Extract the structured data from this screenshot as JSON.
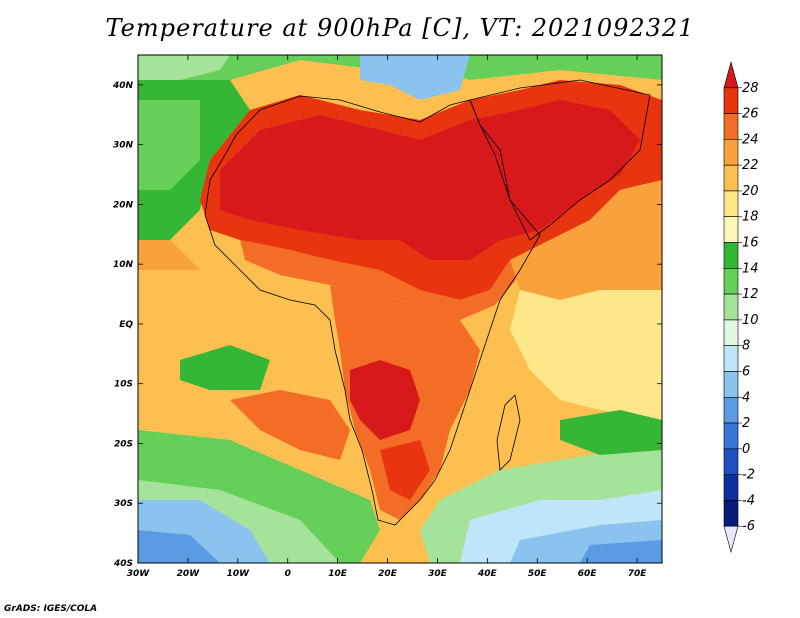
{
  "title": "Temperature at 900hPa [C], VT: 2021092321",
  "lon_labels": [
    "30W",
    "20W",
    "10W",
    "0",
    "10E",
    "20E",
    "30E",
    "40E",
    "50E",
    "60E",
    "70E"
  ],
  "lat_labels": [
    "40N",
    "30N",
    "20N",
    "10N",
    "EQ",
    "10S",
    "20S",
    "30S",
    "40S"
  ],
  "lon_range": [
    -30,
    75
  ],
  "lat_range": [
    -40,
    45
  ],
  "colorbar": {
    "labels": [
      "28",
      "26",
      "24",
      "22",
      "20",
      "18",
      "16",
      "14",
      "12",
      "10",
      "8",
      "6",
      "4",
      "2",
      "0",
      "-2",
      "-4",
      "-6"
    ],
    "colors": [
      "#d7191c",
      "#e8340f",
      "#f46d26",
      "#f9a13a",
      "#fdc050",
      "#fee68a",
      "#fff7b8",
      "#35b635",
      "#66cf5a",
      "#a6e39a",
      "#e2f8e2",
      "#bfe6f8",
      "#8ac4ee",
      "#5b9be4",
      "#3a76d8",
      "#1f52c0",
      "#0f2f9e",
      "#0a1a78",
      "#e8e8ff"
    ]
  },
  "credit": "GrADS: IGES/COLA"
}
